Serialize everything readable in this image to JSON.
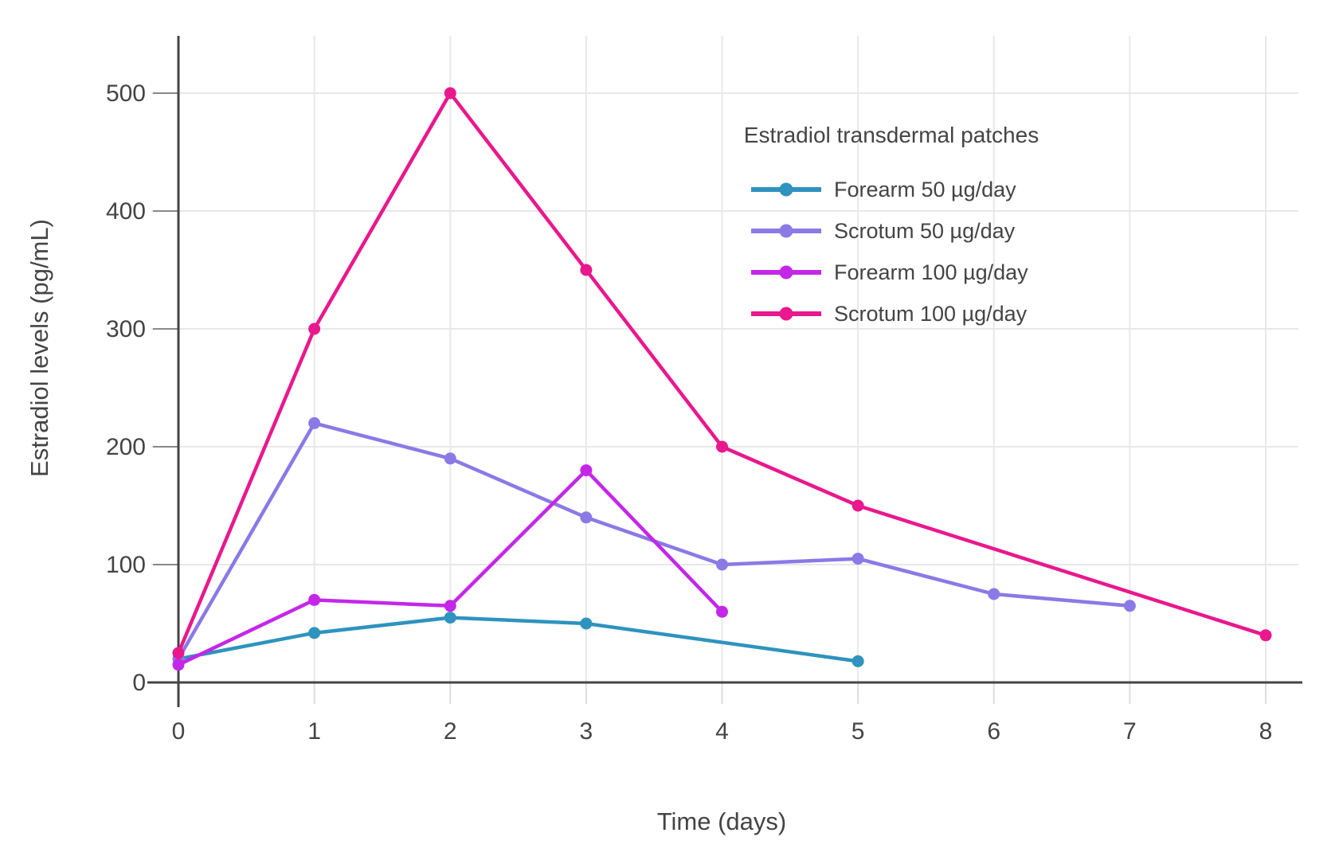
{
  "chart_data": {
    "type": "line",
    "title": "",
    "xlabel": "Time (days)",
    "ylabel": "Estradiol levels (pg/mL)",
    "xlim": [
      0,
      8
    ],
    "ylim": [
      0,
      548
    ],
    "xticks": [
      0,
      1,
      2,
      3,
      4,
      5,
      6,
      7,
      8
    ],
    "yticks": [
      0,
      100,
      200,
      300,
      400,
      500
    ],
    "grid": true,
    "legend_title": "Estradiol transdermal patches",
    "legend_position": "top-right-inside",
    "series": [
      {
        "name": "Forearm 50 µg/day",
        "color": "#2e93be",
        "x": [
          0,
          1,
          2,
          3,
          5
        ],
        "y": [
          20,
          42,
          55,
          50,
          18
        ]
      },
      {
        "name": "Scrotum 50 µg/day",
        "color": "#8b79e6",
        "x": [
          0,
          1,
          2,
          3,
          4,
          5,
          6,
          7
        ],
        "y": [
          20,
          220,
          190,
          140,
          100,
          105,
          75,
          65
        ]
      },
      {
        "name": "Forearm 100 µg/day",
        "color": "#c427e8",
        "x": [
          0,
          1,
          2,
          3,
          4
        ],
        "y": [
          15,
          70,
          65,
          180,
          60
        ]
      },
      {
        "name": "Scrotum 100 µg/day",
        "color": "#e9188d",
        "x": [
          0,
          1,
          2,
          3,
          4,
          5,
          8
        ],
        "y": [
          25,
          300,
          500,
          350,
          200,
          150,
          40
        ]
      }
    ]
  },
  "colors": {
    "background": "#ffffff",
    "text": "#444444",
    "axis_line": "#444444",
    "gridline": "#e8e8e8",
    "y_tick": "#888888",
    "x_tick": "#dddddd"
  }
}
